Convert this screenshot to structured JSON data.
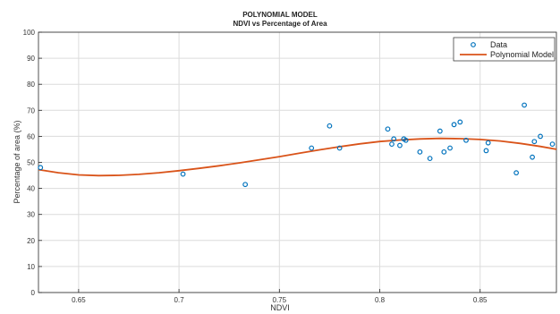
{
  "chart_data": {
    "type": "scatter",
    "title": "POLYNOMIAL MODEL",
    "subtitle": "NDVI vs Percentage of Area",
    "xlabel": "NDVI",
    "ylabel": "Percentage of area (%)",
    "xlim": [
      0.63,
      0.888
    ],
    "ylim": [
      0,
      100
    ],
    "xticks": [
      "0.65",
      "0.7",
      "0.75",
      "0.8",
      "0.85"
    ],
    "xtick_values": [
      0.65,
      0.7,
      0.75,
      0.8,
      0.85
    ],
    "yticks": [
      "0",
      "10",
      "20",
      "30",
      "40",
      "50",
      "60",
      "70",
      "80",
      "90",
      "100"
    ],
    "ytick_values": [
      0,
      10,
      20,
      30,
      40,
      50,
      60,
      70,
      80,
      90,
      100
    ],
    "grid": true,
    "legend_position": "top-right",
    "series": [
      {
        "name": "Data",
        "kind": "scatter",
        "color": "#0072BD",
        "points": [
          [
            0.631,
            48.0
          ],
          [
            0.702,
            45.5
          ],
          [
            0.733,
            41.5
          ],
          [
            0.766,
            55.5
          ],
          [
            0.775,
            64.0
          ],
          [
            0.78,
            55.5
          ],
          [
            0.804,
            62.8
          ],
          [
            0.806,
            57.0
          ],
          [
            0.807,
            59.0
          ],
          [
            0.81,
            56.5
          ],
          [
            0.812,
            59.0
          ],
          [
            0.813,
            58.5
          ],
          [
            0.82,
            54.0
          ],
          [
            0.825,
            51.5
          ],
          [
            0.83,
            62.0
          ],
          [
            0.832,
            54.0
          ],
          [
            0.835,
            55.5
          ],
          [
            0.837,
            64.5
          ],
          [
            0.84,
            65.5
          ],
          [
            0.843,
            58.5
          ],
          [
            0.853,
            54.5
          ],
          [
            0.854,
            57.5
          ],
          [
            0.868,
            46.0
          ],
          [
            0.872,
            72.0
          ],
          [
            0.876,
            52.0
          ],
          [
            0.877,
            58.0
          ],
          [
            0.88,
            60.0
          ],
          [
            0.886,
            57.0
          ]
        ]
      },
      {
        "name": "Polynomial Model",
        "kind": "line",
        "color": "#D95319",
        "points": [
          [
            0.63,
            47.2
          ],
          [
            0.64,
            46.0
          ],
          [
            0.65,
            45.2
          ],
          [
            0.66,
            44.9
          ],
          [
            0.67,
            45.0
          ],
          [
            0.68,
            45.4
          ],
          [
            0.69,
            46.0
          ],
          [
            0.7,
            46.8
          ],
          [
            0.71,
            47.7
          ],
          [
            0.72,
            48.7
          ],
          [
            0.73,
            49.8
          ],
          [
            0.74,
            51.0
          ],
          [
            0.75,
            52.2
          ],
          [
            0.76,
            53.5
          ],
          [
            0.77,
            54.8
          ],
          [
            0.78,
            56.0
          ],
          [
            0.79,
            57.1
          ],
          [
            0.8,
            58.0
          ],
          [
            0.81,
            58.6
          ],
          [
            0.82,
            59.0
          ],
          [
            0.83,
            59.2
          ],
          [
            0.84,
            59.1
          ],
          [
            0.85,
            58.8
          ],
          [
            0.86,
            58.2
          ],
          [
            0.87,
            57.3
          ],
          [
            0.88,
            56.1
          ],
          [
            0.888,
            55.0
          ]
        ]
      }
    ]
  }
}
